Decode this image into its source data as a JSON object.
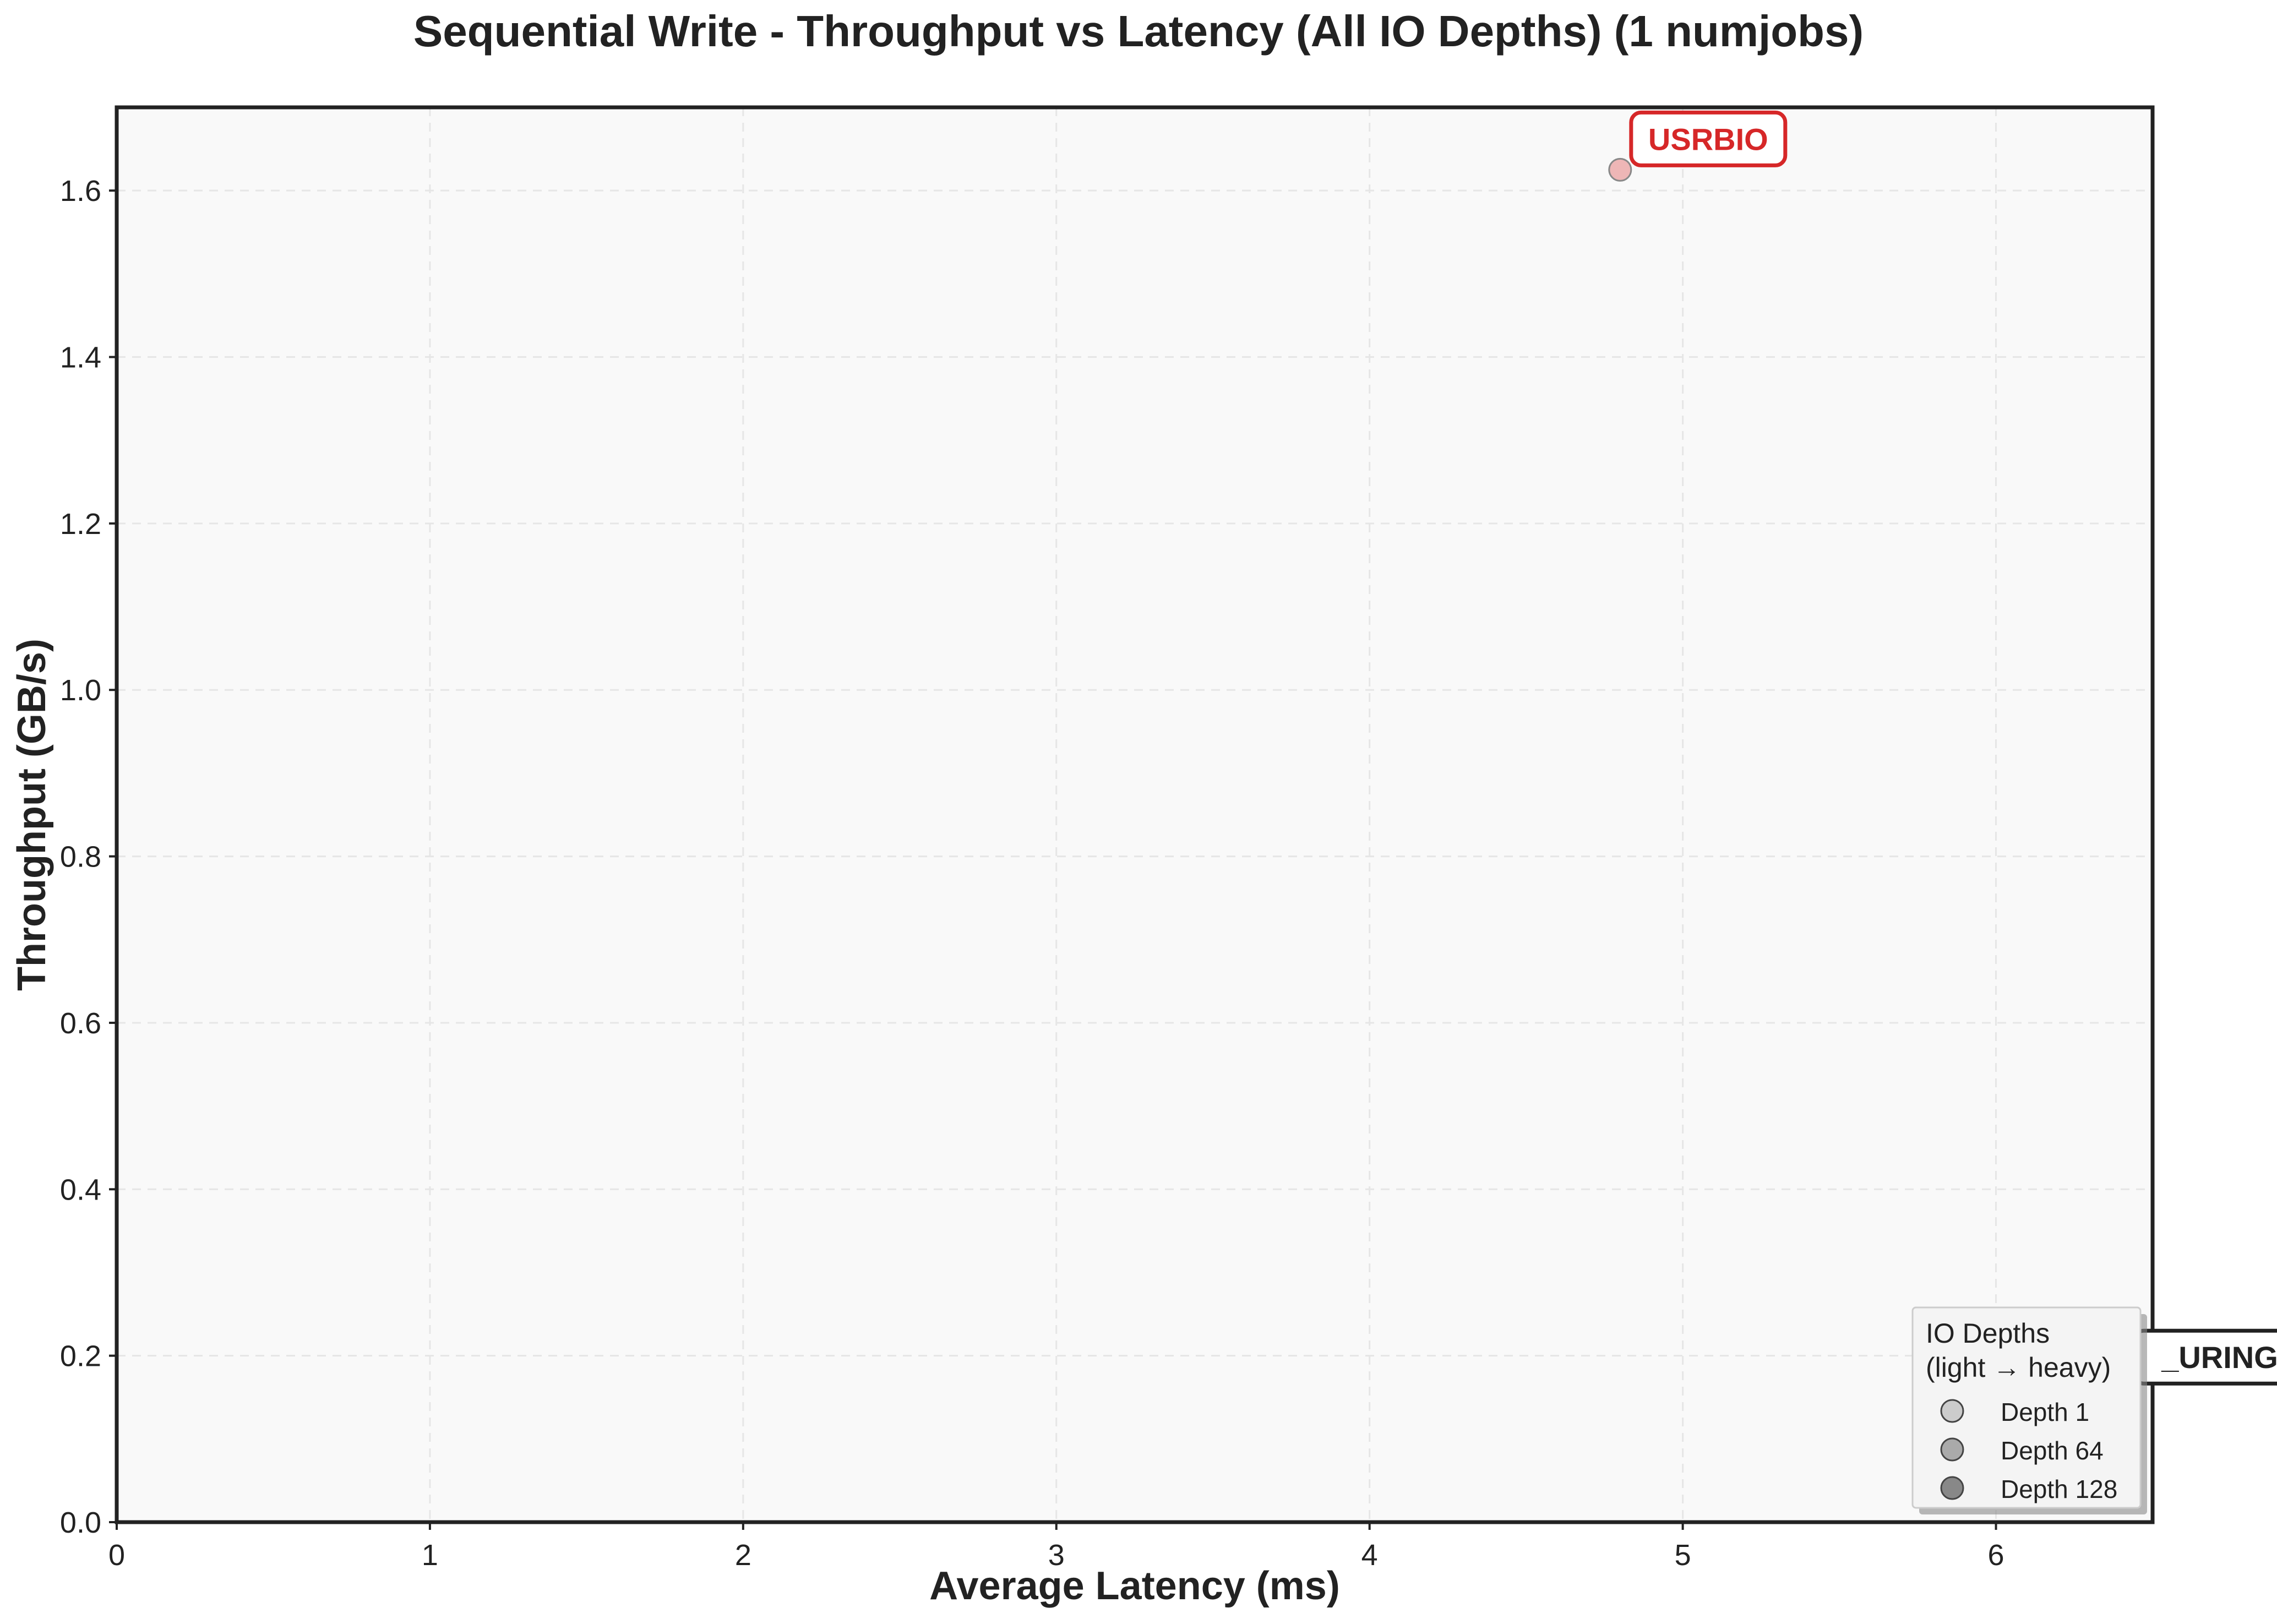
{
  "chart_data": {
    "type": "scatter",
    "title": "Sequential Write - Throughput vs Latency (All IO Depths) (1 numjobs)",
    "xlabel": "Average Latency (ms)",
    "ylabel": "Throughput (GB/s)",
    "xlim": [
      0,
      6.5
    ],
    "ylim": [
      0,
      1.7
    ],
    "xticks": [
      0,
      1,
      2,
      3,
      4,
      5,
      6
    ],
    "yticks": [
      0.0,
      0.2,
      0.4,
      0.6,
      0.8,
      1.0,
      1.2,
      1.4,
      1.6
    ],
    "grid": true,
    "series": [
      {
        "name": "USRBIO",
        "color": "#d62728",
        "points": [
          {
            "x": 4.8,
            "y": 1.625,
            "depth": "Depth 1"
          }
        ]
      }
    ],
    "annotations": [
      {
        "text": "USRBIO",
        "color": "#d62728",
        "anchor_x": 4.8,
        "anchor_y": 1.625
      },
      {
        "text": "_URING",
        "color": "#222222",
        "anchor_x": 6.5,
        "anchor_y": 0.195
      }
    ],
    "legend": {
      "title_line1": "IO Depths",
      "title_line2": "(light → heavy)",
      "placement": "bottom-right",
      "entries": [
        {
          "label": "Depth 1",
          "fill": "#cccccc"
        },
        {
          "label": "Depth 64",
          "fill": "#aaaaaa"
        },
        {
          "label": "Depth 128",
          "fill": "#888888"
        }
      ]
    }
  }
}
